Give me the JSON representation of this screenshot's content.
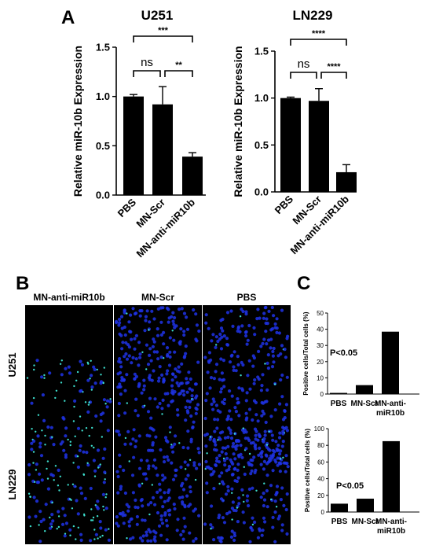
{
  "panel_labels": {
    "a": "A",
    "b": "B",
    "c": "C"
  },
  "chart_data": [
    {
      "id": "u251",
      "type": "bar",
      "title": "U251",
      "ylabel": "Relative miR-10b Expression",
      "categories": [
        "PBS",
        "MN-Scr",
        "MN-anti-miR10b"
      ],
      "values": [
        1.0,
        0.92,
        0.39
      ],
      "errors": [
        0.02,
        0.18,
        0.04
      ],
      "ylim": [
        0,
        1.5
      ],
      "yticks": [
        "0.0",
        "0.5",
        "1.0",
        "1.5"
      ],
      "significance": [
        {
          "from": 0,
          "to": 2,
          "label": "***"
        },
        {
          "from": 0,
          "to": 1,
          "label": "ns"
        },
        {
          "from": 1,
          "to": 2,
          "label": "**"
        }
      ]
    },
    {
      "id": "ln229",
      "type": "bar",
      "title": "LN229",
      "ylabel": "Relative miR-10b Expression",
      "categories": [
        "PBS",
        "MN-Scr",
        "MN-anti-miR10b"
      ],
      "values": [
        1.0,
        0.97,
        0.21
      ],
      "errors": [
        0.01,
        0.13,
        0.08
      ],
      "ylim": [
        0,
        1.5
      ],
      "yticks": [
        "0.0",
        "0.5",
        "1.0",
        "1.5"
      ],
      "significance": [
        {
          "from": 0,
          "to": 2,
          "label": "****"
        },
        {
          "from": 0,
          "to": 1,
          "label": "ns"
        },
        {
          "from": 1,
          "to": 2,
          "label": "****"
        }
      ]
    },
    {
      "id": "c_u251",
      "type": "bar",
      "ylabel": "Positive cells/Total cells (%)",
      "categories": [
        "PBS",
        "MN-Scr",
        "MN-anti-miR10b"
      ],
      "values": [
        0.7,
        5.5,
        38.5
      ],
      "ylim": [
        0,
        50
      ],
      "yticks": [
        "0",
        "10",
        "20",
        "30",
        "40",
        "50"
      ],
      "annotation": "P<0.05"
    },
    {
      "id": "c_ln229",
      "type": "bar",
      "ylabel": "Positive cells/Total cells (%)",
      "categories": [
        "PBS",
        "MN-Scr",
        "MN-anti-miR10b"
      ],
      "values": [
        10,
        16,
        85
      ],
      "ylim": [
        0,
        100
      ],
      "yticks": [
        "0",
        "20",
        "40",
        "60",
        "80",
        "100"
      ],
      "annotation": "P<0.05"
    }
  ],
  "microscopy": {
    "column_headers": [
      "MN-anti-miR10b",
      "MN-Scr",
      "PBS"
    ],
    "row_headers": [
      "U251",
      "LN229"
    ],
    "colors": {
      "nuclei": "#1e33e6",
      "positive": "#3fe8d6",
      "background": "#000000"
    }
  }
}
